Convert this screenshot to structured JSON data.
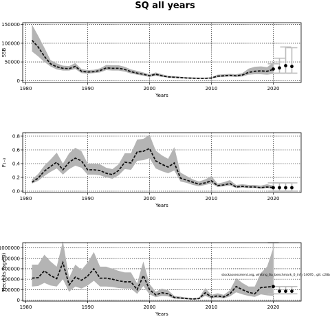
{
  "title": "SQ all years",
  "annotation": "stockassessment.org, whiting_6a_benchmark_0_inf_r14095 , git: c28b",
  "colors": {
    "band": "#b4b4b4",
    "line": "#111111",
    "hist": "#bdbdbd",
    "point": "#000000",
    "grid": "#000000"
  },
  "chart_data": [
    {
      "type": "line",
      "ylabel": "SSB",
      "xlabel": "Years",
      "xlim": [
        1979.5,
        2024.5
      ],
      "ylim": [
        -5000,
        155000
      ],
      "xticks": [
        1980,
        1990,
        2000,
        2010,
        2020
      ],
      "yticks": [
        0,
        50000,
        100000,
        150000
      ],
      "grid": true,
      "x": [
        1981,
        1982,
        1983,
        1984,
        1985,
        1986,
        1987,
        1988,
        1989,
        1990,
        1991,
        1992,
        1993,
        1994,
        1995,
        1996,
        1997,
        1998,
        1999,
        2000,
        2001,
        2002,
        2003,
        2004,
        2005,
        2006,
        2007,
        2008,
        2009,
        2010,
        2011,
        2012,
        2013,
        2014,
        2015,
        2016,
        2017,
        2018,
        2019,
        2020
      ],
      "values": [
        108000,
        90000,
        65000,
        45000,
        37000,
        33000,
        32000,
        38000,
        25000,
        23000,
        24000,
        27000,
        34000,
        33000,
        33000,
        30000,
        24000,
        20000,
        17000,
        13000,
        17000,
        13000,
        10000,
        9000,
        8000,
        7000,
        6500,
        6000,
        6000,
        7000,
        12000,
        13000,
        14000,
        13000,
        15000,
        22000,
        25000,
        26000,
        25000,
        30000
      ],
      "lower": [
        78000,
        65000,
        50000,
        38000,
        30000,
        27000,
        27000,
        31000,
        20000,
        19000,
        20000,
        22000,
        28000,
        27000,
        27000,
        24000,
        19000,
        16000,
        13000,
        10000,
        13000,
        10000,
        8000,
        7000,
        6500,
        5500,
        5000,
        4800,
        4800,
        5500,
        9000,
        10000,
        11000,
        10000,
        11000,
        16000,
        17000,
        17000,
        16000,
        18000
      ],
      "upper": [
        150000,
        120000,
        88000,
        55000,
        46000,
        40000,
        39000,
        47000,
        31000,
        28000,
        29000,
        33000,
        42000,
        41000,
        41000,
        37000,
        30000,
        26000,
        22000,
        17000,
        22000,
        17000,
        13000,
        12000,
        10500,
        9000,
        8500,
        8000,
        8000,
        9000,
        16000,
        17000,
        18000,
        17000,
        20000,
        32000,
        37000,
        38000,
        36000,
        48000
      ],
      "forecast": {
        "x": [
          2020,
          2021,
          2022,
          2023
        ],
        "values": [
          31000,
          34000,
          40000,
          38000
        ],
        "lower": [
          20000,
          20000,
          20000,
          20000
        ],
        "upper": [
          45000,
          60000,
          90000,
          88000
        ]
      }
    },
    {
      "type": "line",
      "ylabel": "F₁₋₃",
      "xlabel": "Years",
      "xlim": [
        1979.5,
        2024.5
      ],
      "ylim": [
        -0.02,
        0.85
      ],
      "xticks": [
        1980,
        1990,
        2000,
        2010,
        2020
      ],
      "yticks": [
        0.0,
        0.2,
        0.4,
        0.6,
        0.8
      ],
      "ytick_labels": [
        "0.0",
        "0.2",
        "0.4",
        "0.6",
        "0.8"
      ],
      "grid": true,
      "x": [
        1981,
        1982,
        1983,
        1984,
        1985,
        1986,
        1987,
        1988,
        1989,
        1990,
        1991,
        1992,
        1993,
        1994,
        1995,
        1996,
        1997,
        1998,
        1999,
        2000,
        2001,
        2002,
        2003,
        2004,
        2005,
        2006,
        2007,
        2008,
        2009,
        2010,
        2011,
        2012,
        2013,
        2014,
        2015,
        2016,
        2017,
        2018,
        2019,
        2020
      ],
      "values": [
        0.13,
        0.19,
        0.29,
        0.36,
        0.42,
        0.31,
        0.42,
        0.48,
        0.44,
        0.31,
        0.31,
        0.3,
        0.26,
        0.24,
        0.3,
        0.42,
        0.41,
        0.57,
        0.58,
        0.62,
        0.44,
        0.39,
        0.35,
        0.41,
        0.19,
        0.16,
        0.13,
        0.1,
        0.12,
        0.15,
        0.08,
        0.09,
        0.11,
        0.06,
        0.07,
        0.06,
        0.06,
        0.05,
        0.06,
        0.05
      ],
      "lower": [
        0.11,
        0.15,
        0.22,
        0.28,
        0.33,
        0.24,
        0.32,
        0.37,
        0.34,
        0.24,
        0.24,
        0.23,
        0.2,
        0.18,
        0.23,
        0.32,
        0.31,
        0.44,
        0.45,
        0.48,
        0.33,
        0.29,
        0.26,
        0.3,
        0.14,
        0.12,
        0.09,
        0.07,
        0.09,
        0.11,
        0.06,
        0.07,
        0.08,
        0.045,
        0.05,
        0.045,
        0.045,
        0.035,
        0.045,
        0.035
      ],
      "upper": [
        0.17,
        0.25,
        0.37,
        0.46,
        0.56,
        0.4,
        0.55,
        0.63,
        0.58,
        0.4,
        0.4,
        0.39,
        0.34,
        0.32,
        0.39,
        0.55,
        0.55,
        0.75,
        0.76,
        0.82,
        0.59,
        0.52,
        0.47,
        0.64,
        0.27,
        0.22,
        0.17,
        0.14,
        0.17,
        0.22,
        0.11,
        0.13,
        0.16,
        0.09,
        0.1,
        0.09,
        0.09,
        0.08,
        0.1,
        0.08
      ],
      "forecast": {
        "x": [
          2020,
          2021,
          2022,
          2023
        ],
        "values": [
          0.05,
          0.05,
          0.05,
          0.05
        ],
        "lower": [
          0.0,
          0.0,
          0.0,
          0.0
        ],
        "upper": [
          0.12,
          0.12,
          0.12,
          0.12
        ]
      }
    },
    {
      "type": "line",
      "ylabel": "Recruits (age 0)",
      "xlabel": "Years",
      "xlim": [
        1979.5,
        2024.5
      ],
      "ylim": [
        -20000,
        1100000
      ],
      "xticks": [
        1980,
        1990,
        2000,
        2010,
        2020
      ],
      "yticks": [
        0,
        200000,
        400000,
        600000,
        800000,
        1000000
      ],
      "ytick_labels": [
        "0",
        "200000",
        "400000",
        "600000",
        "800000",
        "1000000"
      ],
      "grid": true,
      "x": [
        1981,
        1982,
        1983,
        1984,
        1985,
        1986,
        1987,
        1988,
        1989,
        1990,
        1991,
        1992,
        1993,
        1994,
        1995,
        1996,
        1997,
        1998,
        1999,
        2000,
        2001,
        2002,
        2003,
        2004,
        2005,
        2006,
        2007,
        2008,
        2009,
        2010,
        2011,
        2012,
        2013,
        2014,
        2015,
        2016,
        2017,
        2018,
        2019,
        2020
      ],
      "values": [
        420000,
        430000,
        560000,
        470000,
        410000,
        720000,
        290000,
        440000,
        380000,
        460000,
        600000,
        420000,
        420000,
        400000,
        370000,
        350000,
        350000,
        200000,
        470000,
        200000,
        100000,
        140000,
        120000,
        50000,
        40000,
        30000,
        20000,
        30000,
        140000,
        60000,
        80000,
        60000,
        120000,
        260000,
        200000,
        150000,
        120000,
        240000,
        250000,
        260000
      ],
      "lower": [
        260000,
        270000,
        330000,
        280000,
        260000,
        400000,
        160000,
        260000,
        220000,
        280000,
        370000,
        260000,
        260000,
        250000,
        230000,
        220000,
        220000,
        120000,
        270000,
        110000,
        55000,
        80000,
        70000,
        28000,
        22000,
        16000,
        11000,
        17000,
        80000,
        32000,
        45000,
        33000,
        70000,
        150000,
        110000,
        80000,
        60000,
        110000,
        90000,
        80000
      ],
      "upper": [
        680000,
        680000,
        870000,
        740000,
        640000,
        1130000,
        430000,
        680000,
        580000,
        720000,
        920000,
        640000,
        640000,
        600000,
        560000,
        530000,
        530000,
        320000,
        740000,
        310000,
        160000,
        220000,
        190000,
        80000,
        65000,
        48000,
        34000,
        48000,
        230000,
        100000,
        130000,
        100000,
        190000,
        420000,
        330000,
        260000,
        260000,
        520000,
        640000,
        1000000
      ],
      "forecast": {
        "x": [
          2020,
          2021,
          2022,
          2023
        ],
        "values": [
          260000,
          170000,
          170000,
          170000
        ],
        "lower": [
          120000,
          120000,
          120000,
          120000
        ],
        "upper": [
          1100000,
          260000,
          260000,
          260000
        ]
      }
    }
  ]
}
